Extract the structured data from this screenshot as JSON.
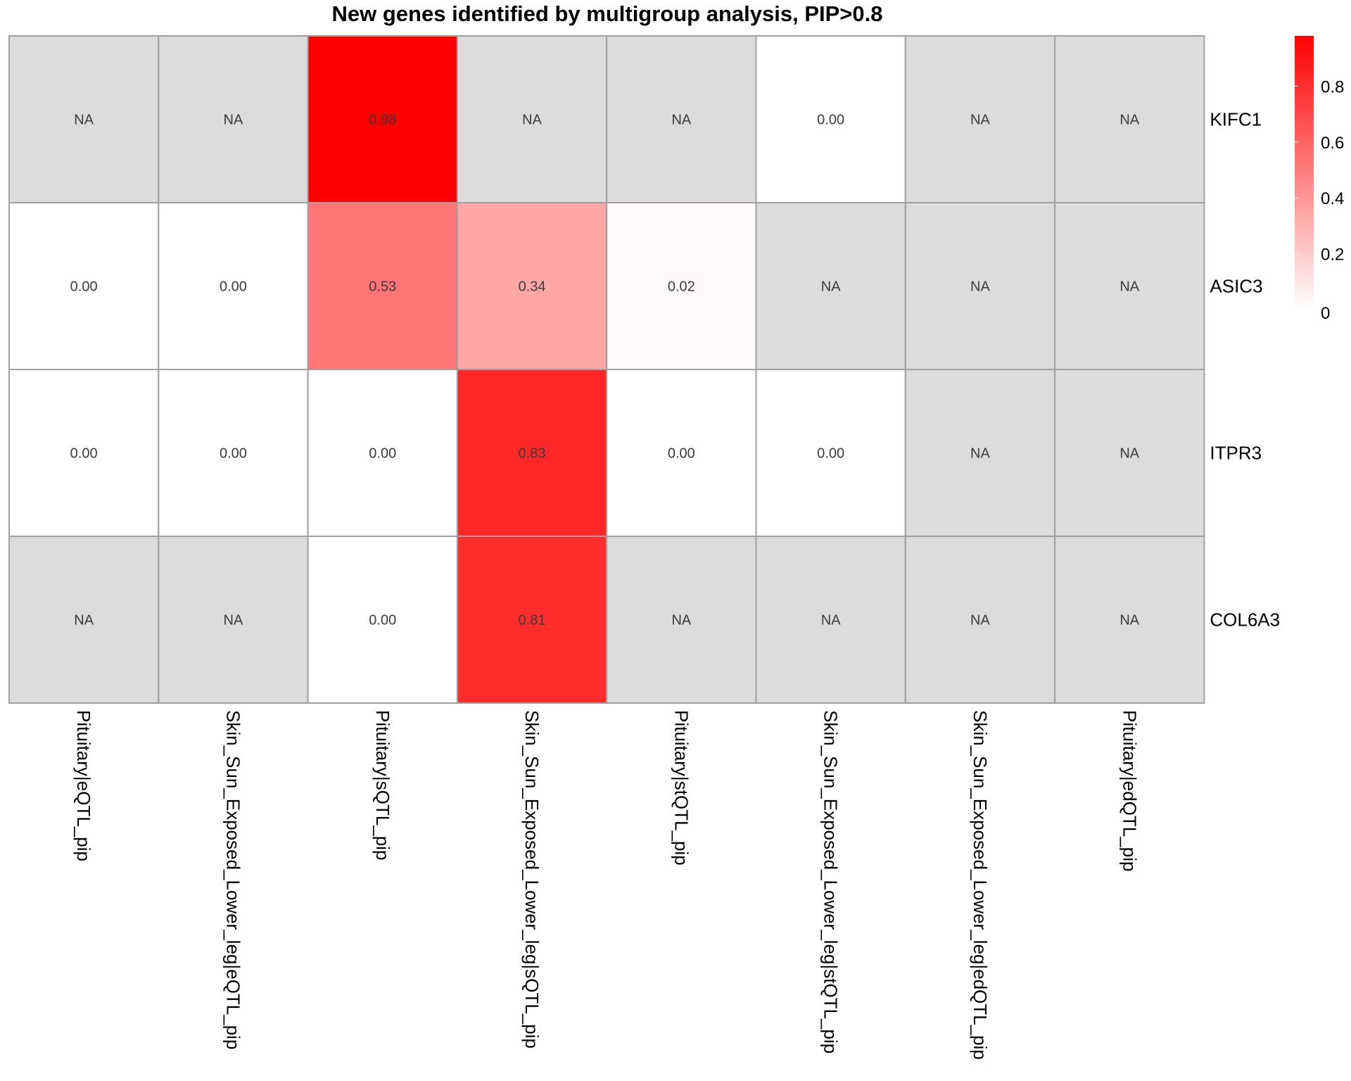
{
  "chart_data": {
    "type": "heatmap",
    "title": "New genes identified by multigroup analysis, PIP>0.8",
    "rows": [
      "KIFC1",
      "ASIC3",
      "ITPR3",
      "COL6A3"
    ],
    "columns": [
      "Pituitary|eQTL_pip",
      "Skin_Sun_Exposed_Lower_leg|eQTL_pip",
      "Pituitary|sQTL_pip",
      "Skin_Sun_Exposed_Lower_leg|sQTL_pip",
      "Pituitary|stQTL_pip",
      "Skin_Sun_Exposed_Lower_leg|stQTL_pip",
      "Skin_Sun_Exposed_Lower_leg|edQTL_pip",
      "Pituitary|edQTL_pip"
    ],
    "values": [
      [
        null,
        null,
        0.98,
        null,
        null,
        0.0,
        null,
        null
      ],
      [
        0.0,
        0.0,
        0.53,
        0.34,
        0.02,
        null,
        null,
        null
      ],
      [
        0.0,
        0.0,
        0.0,
        0.83,
        0.0,
        0.0,
        null,
        null
      ],
      [
        null,
        null,
        0.0,
        0.81,
        null,
        null,
        null,
        null
      ]
    ],
    "na_label": "NA",
    "value_format_decimals": 2,
    "na_color": "#dcdcdc",
    "low_color": "#ffffff",
    "high_color": "#ff0000",
    "legend": {
      "position": "right",
      "min": 0,
      "max": 0.98,
      "ticks": [
        0,
        0.2,
        0.4,
        0.6,
        0.8
      ],
      "tick_labels": [
        "0",
        "0.2",
        "0.4",
        "0.6",
        "0.8"
      ]
    }
  }
}
